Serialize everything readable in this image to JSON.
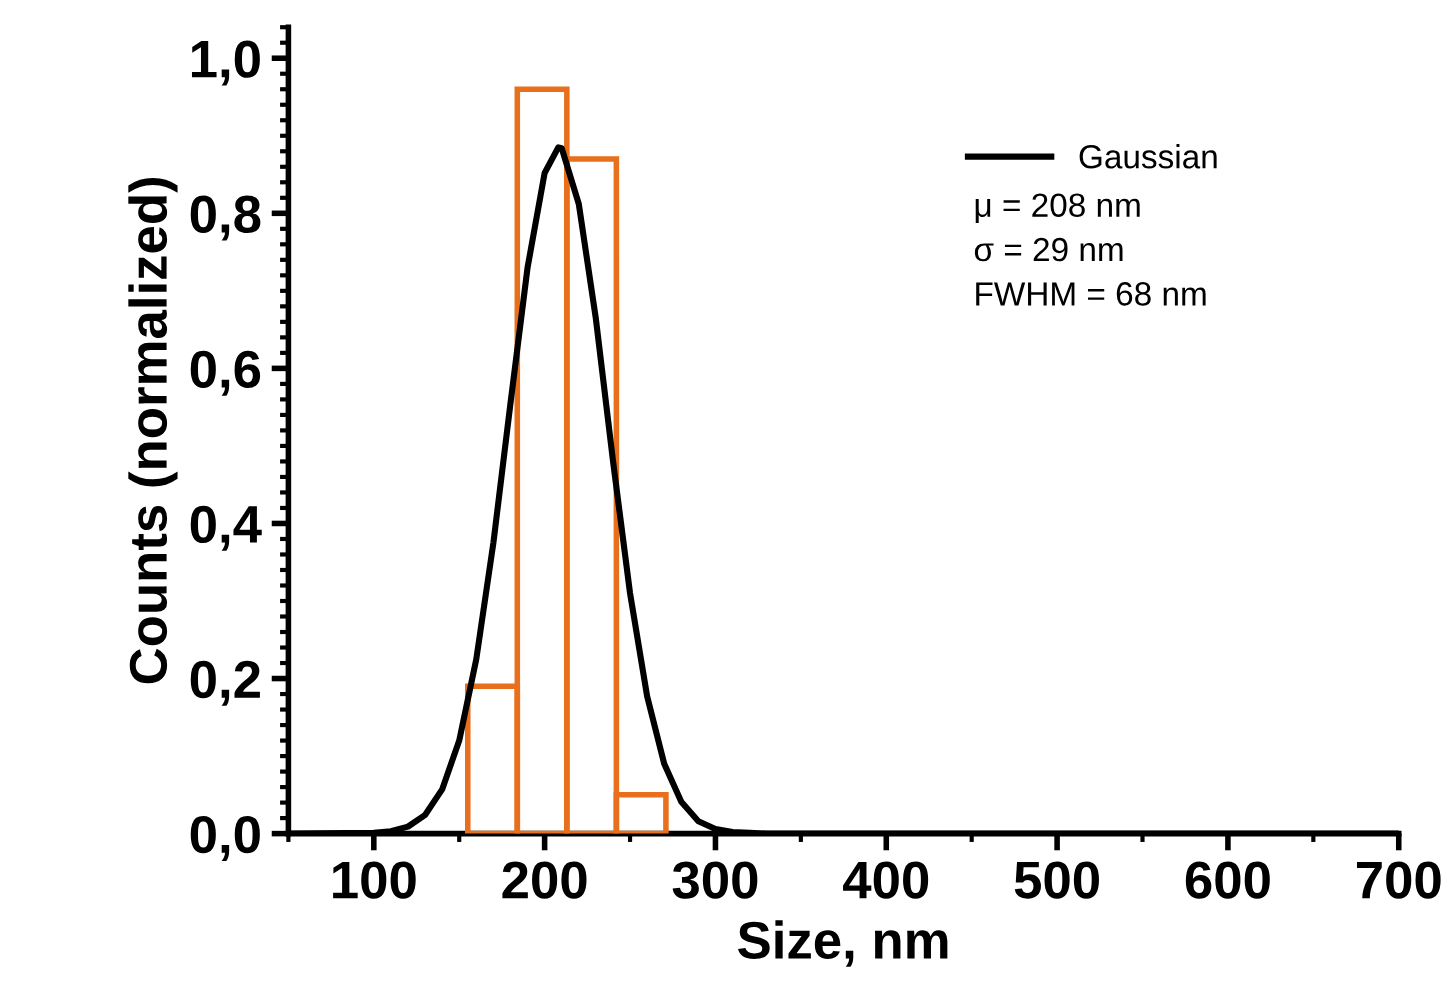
{
  "chart_data": {
    "type": "histogram",
    "xlabel": "Size, nm",
    "ylabel": "Counts (normalized)",
    "bins": [
      155,
      184,
      213,
      242,
      271
    ],
    "values": [
      0.19,
      0.96,
      0.87,
      0.05
    ],
    "color": "#e8701c",
    "series": [
      {
        "type": "line",
        "name": "Gaussian",
        "color": "#000000",
        "x": [
          50,
          100,
          110,
          120,
          130,
          140,
          150,
          160,
          170,
          180,
          190,
          200,
          208,
          210,
          220,
          230,
          240,
          250,
          260,
          270,
          280,
          290,
          300,
          310,
          320,
          330,
          350,
          500,
          700
        ],
        "values": [
          0,
          0.001,
          0.003,
          0.009,
          0.024,
          0.057,
          0.12,
          0.225,
          0.375,
          0.555,
          0.73,
          0.852,
          0.885,
          0.884,
          0.812,
          0.664,
          0.481,
          0.31,
          0.177,
          0.09,
          0.041,
          0.016,
          0.006,
          0.002,
          0.001,
          0,
          0,
          0,
          0
        ]
      }
    ],
    "annotations": [
      "μ = 208 nm",
      "σ = 29 nm",
      "FWHM = 68 nm"
    ],
    "xlim": [
      50,
      700
    ],
    "ylim": [
      0,
      1.04
    ],
    "xticks": [
      100,
      200,
      300,
      400,
      500,
      600,
      700
    ],
    "yticks": [
      {
        "value": 0,
        "label": "0,0"
      },
      {
        "value": 0.2,
        "label": "0,2"
      },
      {
        "value": 0.4,
        "label": "0,4"
      },
      {
        "value": 0.6,
        "label": "0,6"
      },
      {
        "value": 0.8,
        "label": "0,8"
      },
      {
        "value": 1.0,
        "label": "1,0"
      }
    ],
    "legend": "top right",
    "grid": false
  }
}
